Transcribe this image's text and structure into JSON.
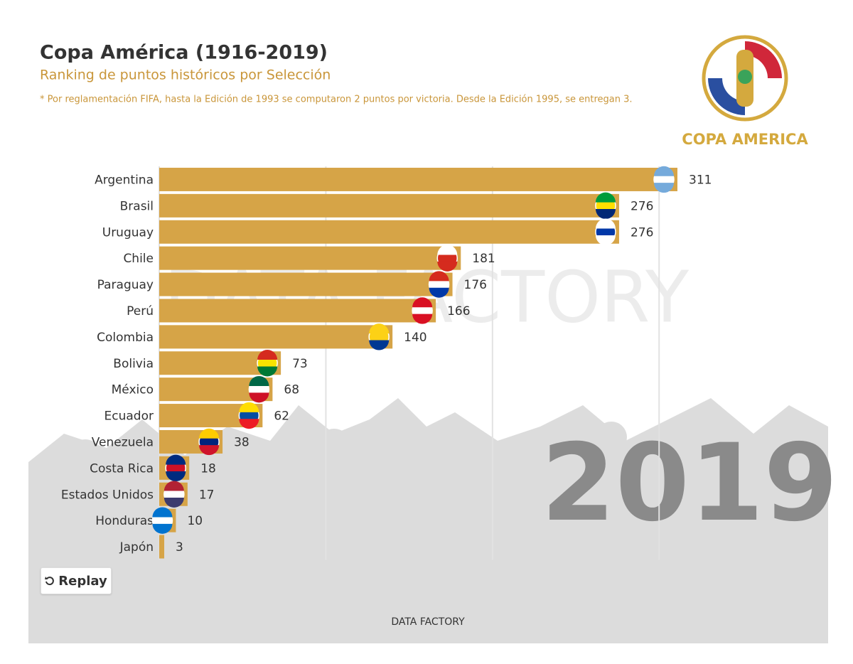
{
  "chart_data": {
    "type": "bar",
    "orientation": "horizontal",
    "title": "Copa América (1916-2019)",
    "subtitle": "Ranking de puntos históricos por Selección",
    "note": "* Por reglamentación FIFA, hasta la Edición de 1993 se computaron 2 puntos por victoria. Desde la Edición 1995, se entregan 3.",
    "logo_text": "COPA AMERICA",
    "credit": "DATA FACTORY",
    "year": "2019",
    "button": "Replay",
    "categories": [
      "Argentina",
      "Brasil",
      "Uruguay",
      "Chile",
      "Paraguay",
      "Perú",
      "Colombia",
      "Bolivia",
      "México",
      "Ecuador",
      "Venezuela",
      "Costa Rica",
      "Estados Unidos",
      "Honduras",
      "Japón"
    ],
    "values": [
      311,
      276,
      276,
      181,
      176,
      166,
      140,
      73,
      68,
      62,
      38,
      18,
      17,
      10,
      3
    ],
    "color": "#d6a447",
    "xlim": [
      0,
      311
    ],
    "xticks": [
      0,
      100,
      200,
      300
    ],
    "grid": true
  }
}
